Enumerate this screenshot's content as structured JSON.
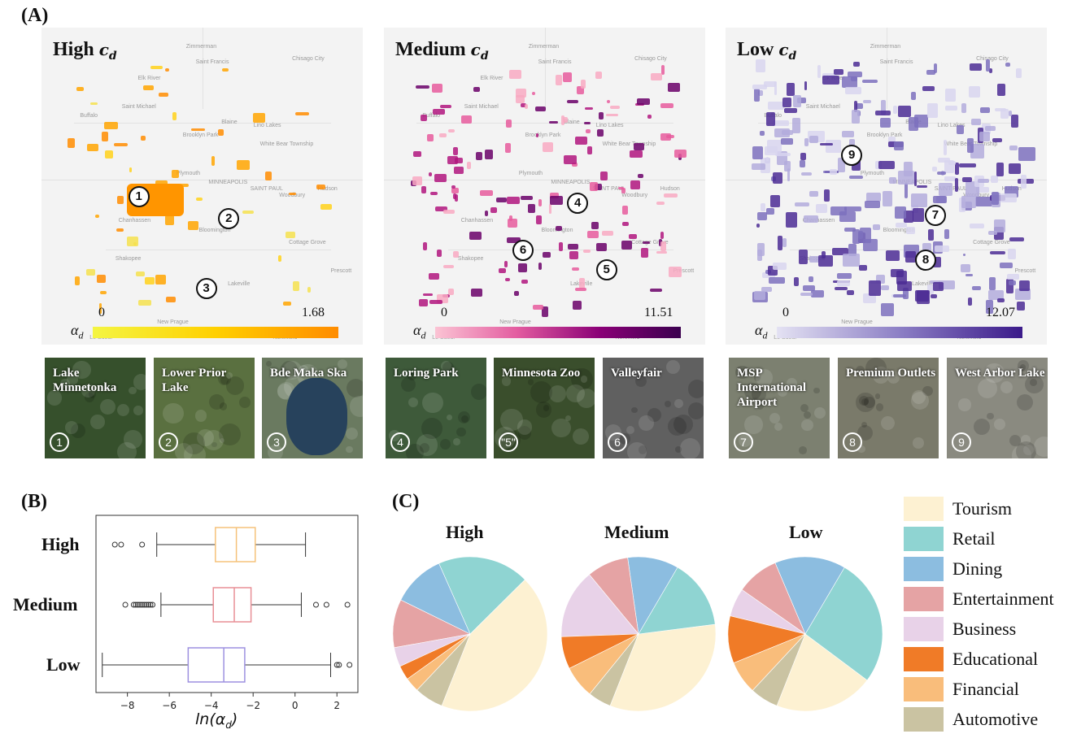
{
  "panel_labels": {
    "a": "(A)",
    "b": "(B)",
    "c": "(C)"
  },
  "maps": [
    {
      "level": "High",
      "sub": "c",
      "subscript": "d",
      "cbar_min": "0",
      "cbar_max": "1.68",
      "cbar_colors": [
        "#f4f542",
        "#ffd000",
        "#ff8c00"
      ],
      "patch_colors": [
        "#ffd11a",
        "#ffa500",
        "#ff8c00",
        "#f4e04d"
      ]
    },
    {
      "level": "Medium",
      "sub": "c",
      "subscript": "d",
      "cbar_min": "0",
      "cbar_max": "11.51",
      "cbar_colors": [
        "#fbc4d4",
        "#e35ca0",
        "#8b0077",
        "#3b004f"
      ],
      "patch_colors": [
        "#f8a9c2",
        "#e65a9c",
        "#b0157e",
        "#6a0068"
      ]
    },
    {
      "level": "Low",
      "sub": "c",
      "subscript": "d",
      "cbar_min": "0",
      "cbar_max": "12.07",
      "cbar_colors": [
        "#e4e2f3",
        "#8c7fc5",
        "#3b1a8a"
      ],
      "patch_colors": [
        "#d8d5ee",
        "#b3acdc",
        "#7d70bd",
        "#4b2b94"
      ]
    }
  ],
  "alpha_symbol": "α",
  "alpha_sub": "d",
  "map_places": [
    "Zimmerman",
    "Saint Francis",
    "Elk River",
    "Saint Michael",
    "Buffalo",
    "Brooklyn Park",
    "Blaine",
    "Lino Lakes",
    "White Bear Township",
    "Plymouth",
    "MINNEAPOLIS",
    "SAINT PAUL",
    "Woodbury",
    "Hudson",
    "Chanhassen",
    "Shakopee",
    "Bloomington",
    "Cottage Grove",
    "Prescott",
    "Lakeville",
    "New Prague",
    "Le Sueur",
    "Northfield",
    "Chisago City"
  ],
  "markers": [
    "1",
    "2",
    "3",
    "4",
    "5",
    "6",
    "7",
    "8",
    "9"
  ],
  "thumbnails": [
    {
      "name": "Lake Minnetonka",
      "num": "1",
      "bg": "#36502c"
    },
    {
      "name": "Lower Prior Lake",
      "num": "2",
      "bg": "#5a7040"
    },
    {
      "name": "Bde Maka Ska",
      "num": "3",
      "bg": "#6a7a60"
    },
    {
      "name": "Loring Park",
      "num": "4",
      "bg": "#3e5a3a"
    },
    {
      "name": "Minnesota Zoo",
      "num": "\"5\"",
      "bg": "#3a4e2c"
    },
    {
      "name": "Valleyfair",
      "num": "6",
      "bg": "#606060"
    },
    {
      "name": "MSP International Airport",
      "num": "7",
      "bg": "#7c8070"
    },
    {
      "name": "Premium Outlets",
      "num": "8",
      "bg": "#7a7a6a"
    },
    {
      "name": "West Arbor Lake",
      "num": "9",
      "bg": "#8a8a80"
    }
  ],
  "boxplot_categories": [
    "High",
    "Medium",
    "Low"
  ],
  "pie_titles": [
    "High",
    "Medium",
    "Low"
  ],
  "legend": [
    {
      "label": "Tourism",
      "color": "#fdf1d2"
    },
    {
      "label": "Retail",
      "color": "#8fd4d2"
    },
    {
      "label": "Dining",
      "color": "#8cbde0"
    },
    {
      "label": "Entertainment",
      "color": "#e5a3a4"
    },
    {
      "label": "Business",
      "color": "#e8d2e8"
    },
    {
      "label": "Educational",
      "color": "#f07b27"
    },
    {
      "label": "Financial",
      "color": "#f9bd7b"
    },
    {
      "label": "Automotive",
      "color": "#cac3a2"
    }
  ],
  "chart_data": [
    {
      "type": "boxplot",
      "xlabel": "ln(α_d)",
      "categories": [
        "High",
        "Medium",
        "Low"
      ],
      "xlim": [
        -9.5,
        3
      ],
      "xticks": [
        -8,
        -6,
        -4,
        -2,
        0,
        2
      ],
      "colors": [
        "#f5c27a",
        "#e88f96",
        "#9d91e0"
      ],
      "series": [
        {
          "name": "High",
          "q1": -3.8,
          "median": -2.8,
          "q3": -1.9,
          "whisker_low": -6.6,
          "whisker_high": 0.5,
          "outliers": [
            -8.6,
            -8.3,
            -7.3
          ]
        },
        {
          "name": "Medium",
          "q1": -3.9,
          "median": -2.9,
          "q3": -2.1,
          "whisker_low": -6.4,
          "whisker_high": 0.3,
          "outliers": [
            -8.1,
            -7.7,
            -7.6,
            -7.5,
            -7.4,
            -7.3,
            -7.2,
            -7.1,
            -7.0,
            -6.9,
            -6.8,
            1.0,
            1.5,
            2.5
          ]
        },
        {
          "name": "Low",
          "q1": -5.1,
          "median": -3.4,
          "q3": -2.4,
          "whisker_low": -9.2,
          "whisker_high": 1.7,
          "outliers": [
            2.0,
            2.1,
            2.6
          ]
        }
      ]
    },
    {
      "type": "pie",
      "charts": [
        {
          "title": "High",
          "labels": [
            "Tourism",
            "Retail",
            "Dining",
            "Entertainment",
            "Business",
            "Educational",
            "Financial",
            "Automotive"
          ],
          "values": [
            43,
            19,
            11,
            10,
            4,
            3,
            3,
            6
          ],
          "start_angle": 0
        },
        {
          "title": "Medium",
          "labels": [
            "Tourism",
            "Retail",
            "Dining",
            "Entertainment",
            "Business",
            "Educational",
            "Financial",
            "Automotive"
          ],
          "values": [
            34,
            15,
            11,
            9,
            15,
            7,
            7,
            5
          ],
          "start_angle": 0
        },
        {
          "title": "Low",
          "labels": [
            "Tourism",
            "Retail",
            "Dining",
            "Entertainment",
            "Business",
            "Educational",
            "Financial",
            "Automotive"
          ],
          "values": [
            21,
            27,
            15,
            9,
            6,
            10,
            7,
            6
          ],
          "start_angle": 0
        }
      ]
    }
  ]
}
